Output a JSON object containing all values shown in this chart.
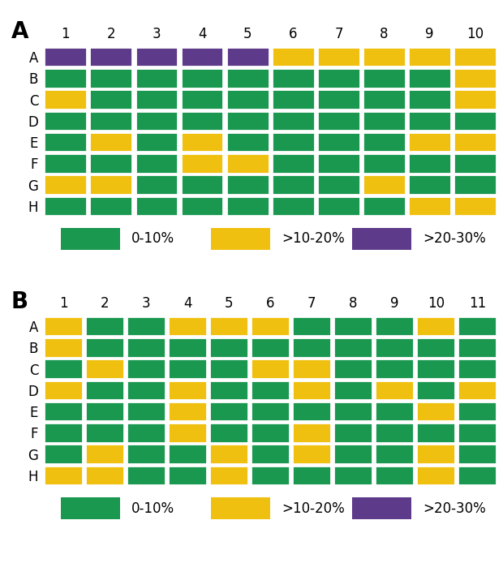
{
  "grid_A": {
    "rows": [
      "A",
      "B",
      "C",
      "D",
      "E",
      "F",
      "G",
      "H"
    ],
    "cols": [
      "1",
      "2",
      "3",
      "4",
      "5",
      "6",
      "7",
      "8",
      "9",
      "10"
    ],
    "data": [
      [
        "P",
        "P",
        "P",
        "P",
        "P",
        "Y",
        "Y",
        "Y",
        "Y",
        "Y"
      ],
      [
        "G",
        "G",
        "G",
        "G",
        "G",
        "G",
        "G",
        "G",
        "G",
        "Y"
      ],
      [
        "Y",
        "G",
        "G",
        "G",
        "G",
        "G",
        "G",
        "G",
        "G",
        "Y"
      ],
      [
        "G",
        "G",
        "G",
        "G",
        "G",
        "G",
        "G",
        "G",
        "G",
        "G"
      ],
      [
        "G",
        "Y",
        "G",
        "Y",
        "G",
        "G",
        "G",
        "G",
        "Y",
        "Y"
      ],
      [
        "G",
        "G",
        "G",
        "Y",
        "Y",
        "G",
        "G",
        "G",
        "G",
        "G"
      ],
      [
        "Y",
        "Y",
        "G",
        "G",
        "G",
        "G",
        "G",
        "Y",
        "G",
        "G"
      ],
      [
        "G",
        "G",
        "G",
        "G",
        "G",
        "G",
        "G",
        "G",
        "Y",
        "Y"
      ]
    ]
  },
  "grid_B": {
    "rows": [
      "A",
      "B",
      "C",
      "D",
      "E",
      "F",
      "G",
      "H"
    ],
    "cols": [
      "1",
      "2",
      "3",
      "4",
      "5",
      "6",
      "7",
      "8",
      "9",
      "10",
      "11"
    ],
    "data": [
      [
        "Y",
        "G",
        "G",
        "Y",
        "Y",
        "Y",
        "G",
        "G",
        "G",
        "Y",
        "G"
      ],
      [
        "Y",
        "G",
        "G",
        "G",
        "G",
        "G",
        "G",
        "G",
        "G",
        "G",
        "G"
      ],
      [
        "G",
        "Y",
        "G",
        "G",
        "G",
        "Y",
        "Y",
        "G",
        "G",
        "G",
        "G"
      ],
      [
        "Y",
        "G",
        "G",
        "Y",
        "G",
        "G",
        "Y",
        "G",
        "Y",
        "G",
        "Y"
      ],
      [
        "G",
        "G",
        "G",
        "Y",
        "G",
        "G",
        "G",
        "G",
        "G",
        "Y",
        "G"
      ],
      [
        "G",
        "G",
        "G",
        "Y",
        "G",
        "G",
        "Y",
        "G",
        "G",
        "G",
        "G"
      ],
      [
        "G",
        "Y",
        "G",
        "G",
        "Y",
        "G",
        "Y",
        "G",
        "G",
        "Y",
        "G"
      ],
      [
        "Y",
        "Y",
        "G",
        "G",
        "Y",
        "G",
        "G",
        "G",
        "G",
        "Y",
        "G"
      ]
    ]
  },
  "colors": {
    "G": "#1a9850",
    "Y": "#f0c010",
    "P": "#5e3a8a"
  },
  "legend_labels": [
    "0-10%",
    ">10-20%",
    ">20-30%"
  ],
  "legend_color_keys": [
    "G",
    "Y",
    "P"
  ],
  "bg_color": "#ffffff",
  "panel_label_fontsize": 20,
  "tick_fontsize": 12,
  "legend_fontsize": 12
}
